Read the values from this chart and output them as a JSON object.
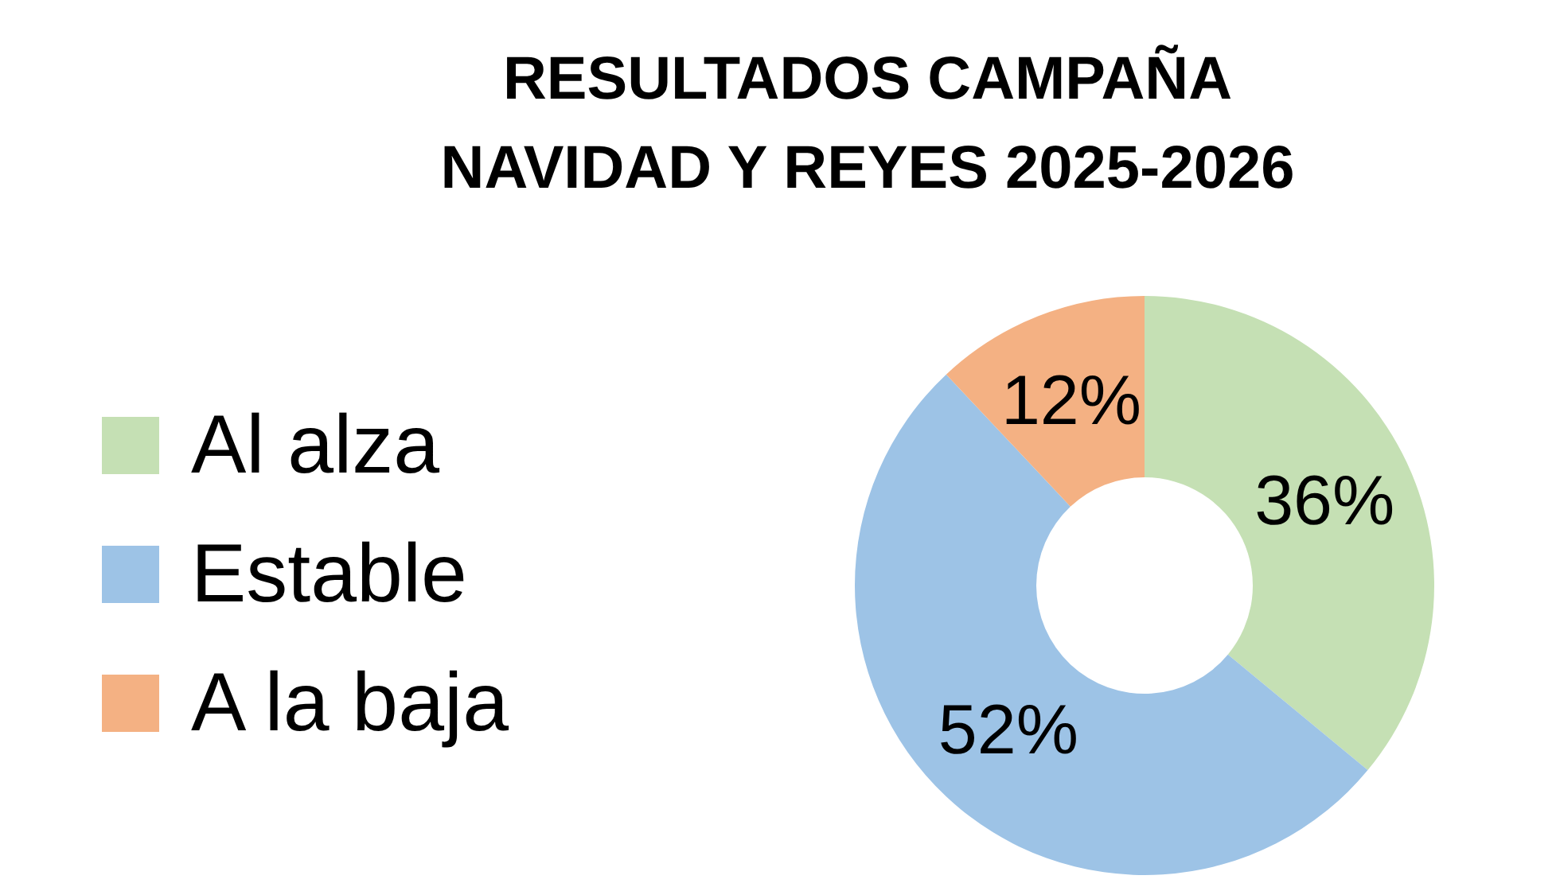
{
  "chart_data": {
    "type": "donut",
    "title": "RESULTADOS CAMPAÑA\nNAVIDAD Y REYES 2025-2026",
    "categories": [
      "Al alza",
      "Estable",
      "A la baja"
    ],
    "values": [
      36,
      52,
      12
    ],
    "colors": [
      "#c5e0b4",
      "#9dc3e6",
      "#f4b183"
    ],
    "value_labels": [
      "36%",
      "52%",
      "12%"
    ],
    "legend": "left"
  }
}
